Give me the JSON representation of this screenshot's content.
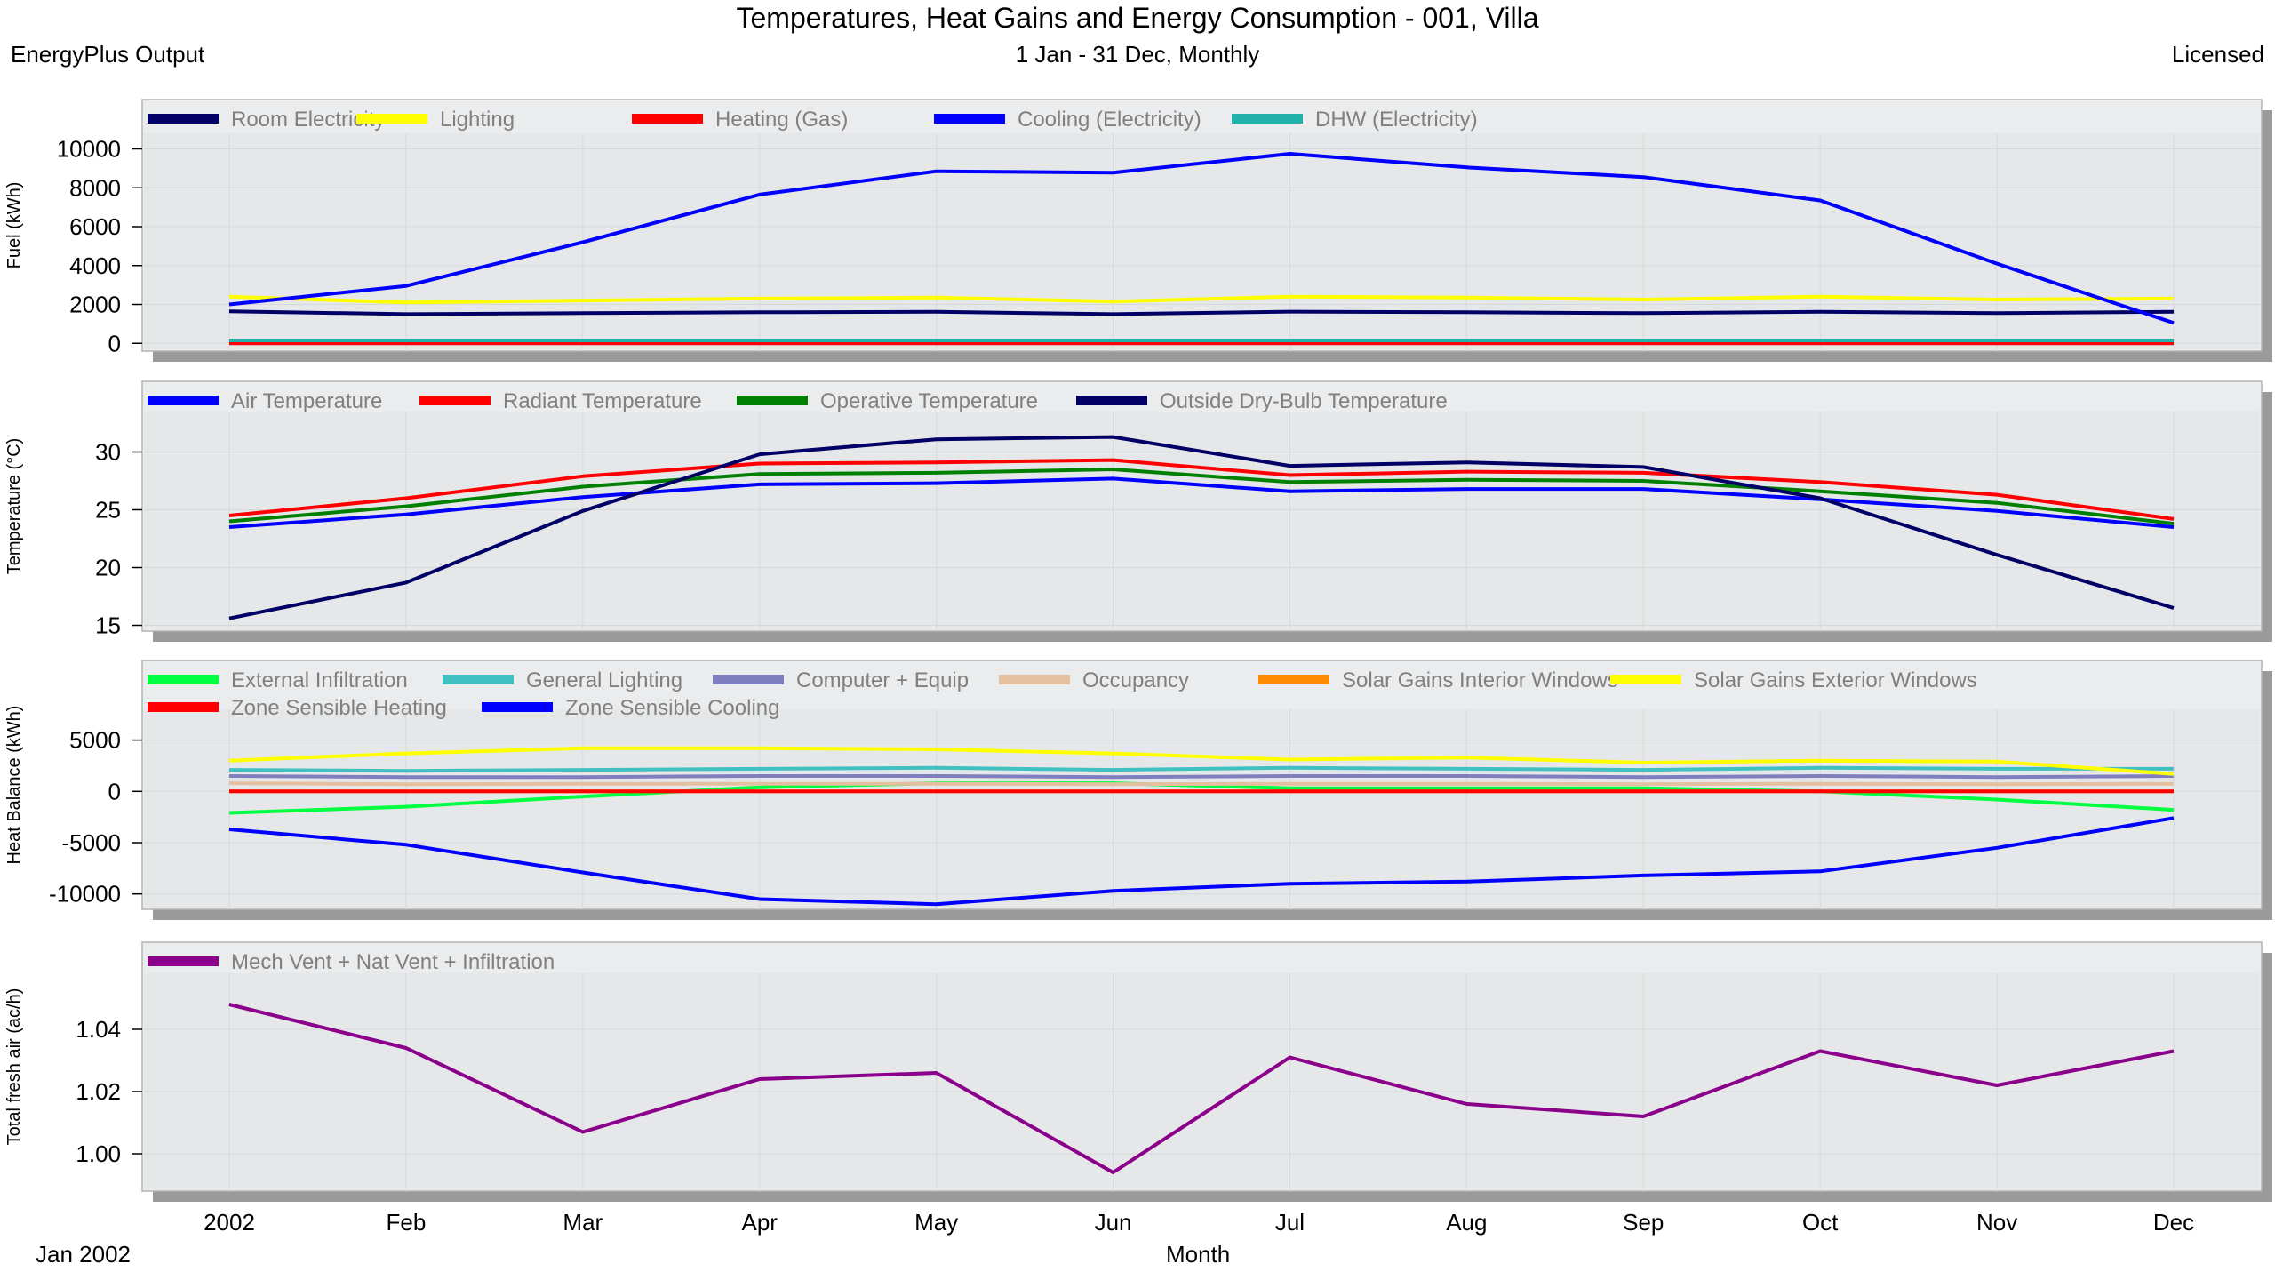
{
  "header": {
    "title": "Temperatures, Heat Gains and Energy Consumption - 001, Villa",
    "subtitle": "1 Jan - 31 Dec, Monthly",
    "left": "EnergyPlus Output",
    "right": "Licensed"
  },
  "footer": {
    "xlabel": "Month",
    "period": "Jan  2002"
  },
  "colors": {
    "panel_bg": "#ebeced",
    "shadow": "#9a9a9a",
    "frame": "#b4b4b4",
    "legend_text": "#808080"
  },
  "chart_data": [
    {
      "type": "line",
      "ylabel": "Fuel (kWh)",
      "ylim": [
        -400,
        10800
      ],
      "yticks": [
        0,
        2000,
        4000,
        6000,
        8000,
        10000
      ],
      "ytick_labels": [
        "0",
        "2000",
        "4000",
        "6000",
        "8000",
        "10000"
      ],
      "categories": [
        "2002",
        "Feb",
        "Mar",
        "Apr",
        "May",
        "Jun",
        "Jul",
        "Aug",
        "Sep",
        "Oct",
        "Nov",
        "Dec"
      ],
      "grid": true,
      "legend": "top-left",
      "series": [
        {
          "name": "Room Electricity",
          "color": "#000066",
          "values": [
            1650,
            1500,
            1550,
            1600,
            1620,
            1500,
            1630,
            1600,
            1550,
            1620,
            1550,
            1620
          ]
        },
        {
          "name": "Lighting",
          "color": "#ffff00",
          "values": [
            2400,
            2100,
            2200,
            2300,
            2350,
            2150,
            2400,
            2350,
            2250,
            2400,
            2250,
            2300
          ]
        },
        {
          "name": "Heating (Gas)",
          "color": "#ff0000",
          "values": [
            0,
            0,
            0,
            0,
            0,
            0,
            0,
            0,
            0,
            0,
            0,
            0
          ]
        },
        {
          "name": "Cooling (Electricity)",
          "color": "#0000ff",
          "values": [
            2000,
            2950,
            5200,
            7650,
            8850,
            8780,
            9750,
            9050,
            8550,
            7350,
            4100,
            1050
          ]
        },
        {
          "name": "DHW (Electricity)",
          "color": "#20b2aa",
          "values": [
            150,
            150,
            150,
            150,
            150,
            150,
            150,
            150,
            150,
            150,
            150,
            150
          ]
        }
      ]
    },
    {
      "type": "line",
      "ylabel": "Temperature (°C)",
      "ylim": [
        14.5,
        33.5
      ],
      "yticks": [
        15,
        20,
        25,
        30
      ],
      "ytick_labels": [
        "15",
        "20",
        "25",
        "30"
      ],
      "categories": [
        "2002",
        "Feb",
        "Mar",
        "Apr",
        "May",
        "Jun",
        "Jul",
        "Aug",
        "Sep",
        "Oct",
        "Nov",
        "Dec"
      ],
      "grid": true,
      "legend": "top-left",
      "series": [
        {
          "name": "Air Temperature",
          "color": "#0000ff",
          "values": [
            23.5,
            24.6,
            26.1,
            27.2,
            27.3,
            27.7,
            26.6,
            26.8,
            26.8,
            25.9,
            24.9,
            23.5
          ]
        },
        {
          "name": "Radiant Temperature",
          "color": "#ff0000",
          "values": [
            24.5,
            26.0,
            27.9,
            29.0,
            29.1,
            29.3,
            28.0,
            28.3,
            28.2,
            27.4,
            26.3,
            24.2
          ]
        },
        {
          "name": "Operative Temperature",
          "color": "#008000",
          "values": [
            24.0,
            25.3,
            27.0,
            28.1,
            28.2,
            28.5,
            27.4,
            27.6,
            27.5,
            26.6,
            25.6,
            23.8
          ]
        },
        {
          "name": "Outside Dry-Bulb Temperature",
          "color": "#000066",
          "values": [
            15.6,
            18.7,
            24.9,
            29.8,
            31.1,
            31.3,
            28.8,
            29.1,
            28.7,
            26.0,
            21.1,
            16.5
          ]
        }
      ]
    },
    {
      "type": "line",
      "ylabel": "Heat Balance (kWh)",
      "ylim": [
        -11500,
        8000
      ],
      "yticks": [
        -10000,
        -5000,
        0,
        5000
      ],
      "ytick_labels": [
        "-10000",
        "-5000",
        "0",
        "5000"
      ],
      "categories": [
        "2002",
        "Feb",
        "Mar",
        "Apr",
        "May",
        "Jun",
        "Jul",
        "Aug",
        "Sep",
        "Oct",
        "Nov",
        "Dec"
      ],
      "grid": true,
      "legend": "top-left",
      "series": [
        {
          "name": "External Infiltration",
          "color": "#00ff40",
          "values": [
            -2100,
            -1500,
            -500,
            400,
            800,
            800,
            300,
            300,
            300,
            0,
            -800,
            -1800
          ]
        },
        {
          "name": "General Lighting",
          "color": "#40c0c0",
          "values": [
            2100,
            2000,
            2100,
            2200,
            2300,
            2100,
            2300,
            2200,
            2100,
            2300,
            2200,
            2200
          ]
        },
        {
          "name": "Computer + Equip",
          "color": "#7f7fbf",
          "values": [
            1500,
            1400,
            1400,
            1500,
            1500,
            1400,
            1500,
            1500,
            1400,
            1500,
            1400,
            1500
          ]
        },
        {
          "name": "Occupancy",
          "color": "#e5c0a0",
          "values": [
            800,
            700,
            750,
            750,
            750,
            700,
            750,
            750,
            700,
            750,
            700,
            750
          ]
        },
        {
          "name": "Solar Gains Interior Windows",
          "color": "#ff8c00",
          "values": [
            0,
            0,
            0,
            0,
            0,
            0,
            0,
            0,
            0,
            0,
            0,
            0
          ]
        },
        {
          "name": "Solar Gains Exterior Windows",
          "color": "#ffff00",
          "values": [
            3000,
            3700,
            4200,
            4200,
            4100,
            3700,
            3100,
            3300,
            2800,
            3000,
            2900,
            1700
          ]
        },
        {
          "name": "Zone Sensible Heating",
          "color": "#ff0000",
          "values": [
            0,
            0,
            0,
            0,
            0,
            0,
            0,
            0,
            0,
            0,
            0,
            0
          ]
        },
        {
          "name": "Zone Sensible Cooling",
          "color": "#0000ff",
          "values": [
            -3700,
            -5200,
            -7900,
            -10500,
            -11000,
            -9700,
            -9000,
            -8800,
            -8200,
            -7800,
            -5500,
            -2600
          ]
        }
      ]
    },
    {
      "type": "line",
      "ylabel": "Total fresh air (ac/h)",
      "ylim": [
        0.988,
        1.058
      ],
      "yticks": [
        1.0,
        1.02,
        1.04
      ],
      "ytick_labels": [
        "1.00",
        "1.02",
        "1.04"
      ],
      "categories": [
        "2002",
        "Feb",
        "Mar",
        "Apr",
        "May",
        "Jun",
        "Jul",
        "Aug",
        "Sep",
        "Oct",
        "Nov",
        "Dec"
      ],
      "grid": true,
      "legend": "top-left",
      "series": [
        {
          "name": "Mech Vent + Nat Vent + Infiltration",
          "color": "#8b008b",
          "values": [
            1.048,
            1.034,
            1.007,
            1.024,
            1.026,
            0.994,
            1.031,
            1.016,
            1.012,
            1.033,
            1.022,
            1.033
          ]
        }
      ]
    }
  ]
}
